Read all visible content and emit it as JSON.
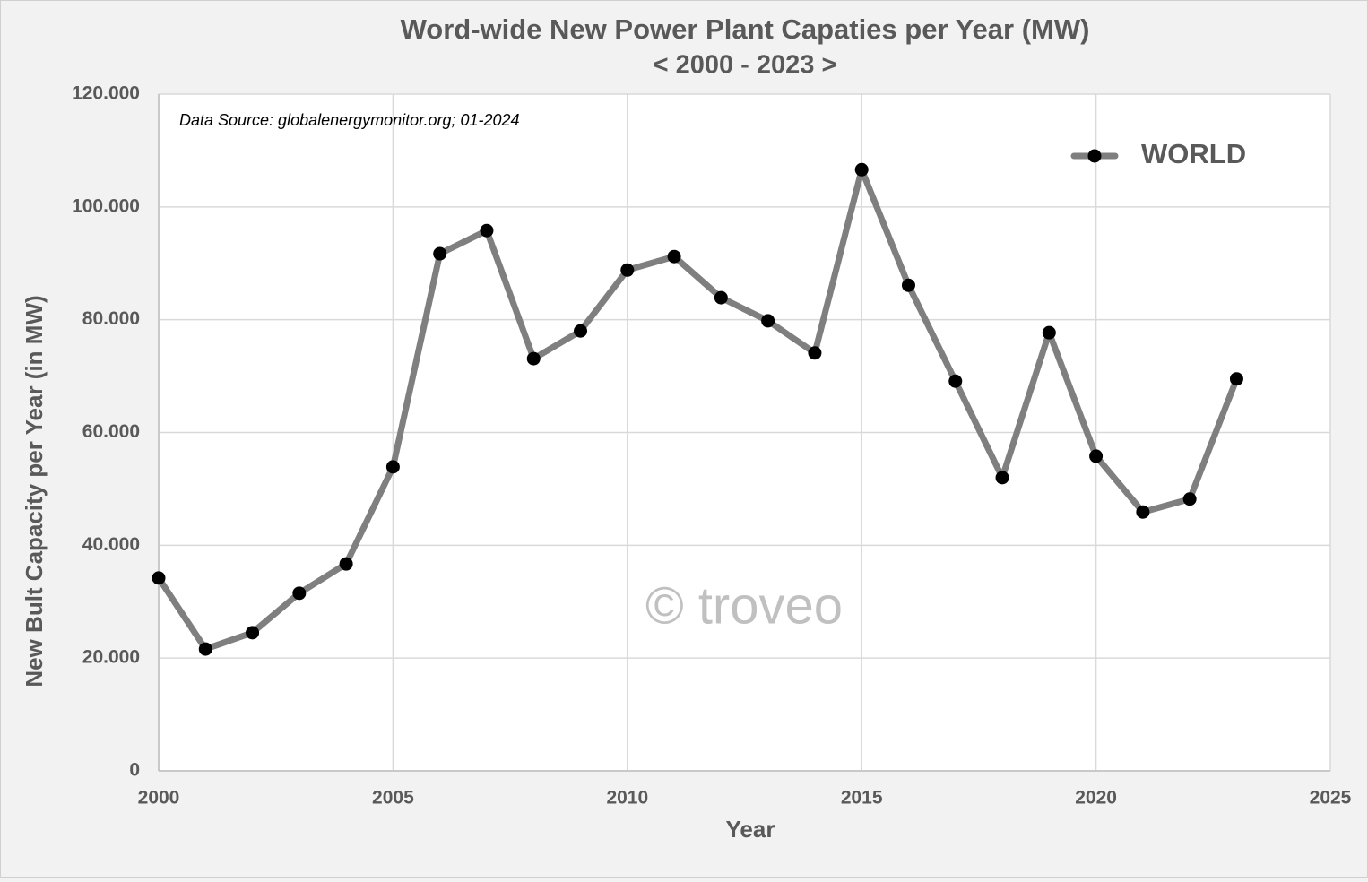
{
  "chart_data": {
    "type": "line",
    "title": "Word-wide New Power Plant Capaties per Year (MW)",
    "subtitle": "< 2000  - 2023 >",
    "x_label": "Year",
    "y_label": "New Bult Capacity per Year (in MW)",
    "annotations": [
      "Data Source: globalenergymonitor.org; 01-2024",
      "© troveo"
    ],
    "x": [
      2000,
      2001,
      2002,
      2003,
      2004,
      2005,
      2006,
      2007,
      2008,
      2009,
      2010,
      2011,
      2012,
      2013,
      2014,
      2015,
      2016,
      2017,
      2018,
      2019,
      2020,
      2021,
      2022,
      2023
    ],
    "series": [
      {
        "name": "WORLD",
        "color": "#7f7f7f",
        "marker_color": "#000000",
        "values": [
          34200,
          21600,
          24500,
          31500,
          36700,
          53900,
          91700,
          95800,
          73100,
          78000,
          88800,
          91200,
          83900,
          79800,
          74100,
          106600,
          86100,
          69100,
          52000,
          77700,
          55800,
          45900,
          48200,
          69500
        ]
      }
    ],
    "xlim": [
      2000,
      2025
    ],
    "xticks": [
      2000,
      2005,
      2010,
      2015,
      2020,
      2025
    ],
    "ylim": [
      0,
      120000
    ],
    "yticks": [
      0,
      {
        "value": 20000,
        "label": "20.000"
      },
      {
        "value": 40000,
        "label": "40.000"
      },
      {
        "value": 60000,
        "label": "60.000"
      },
      {
        "value": 80000,
        "label": "80.000"
      },
      {
        "value": 100000,
        "label": "100.000"
      },
      {
        "value": 120000,
        "label": "120.000"
      }
    ],
    "grid": true,
    "legend": "upper right"
  }
}
